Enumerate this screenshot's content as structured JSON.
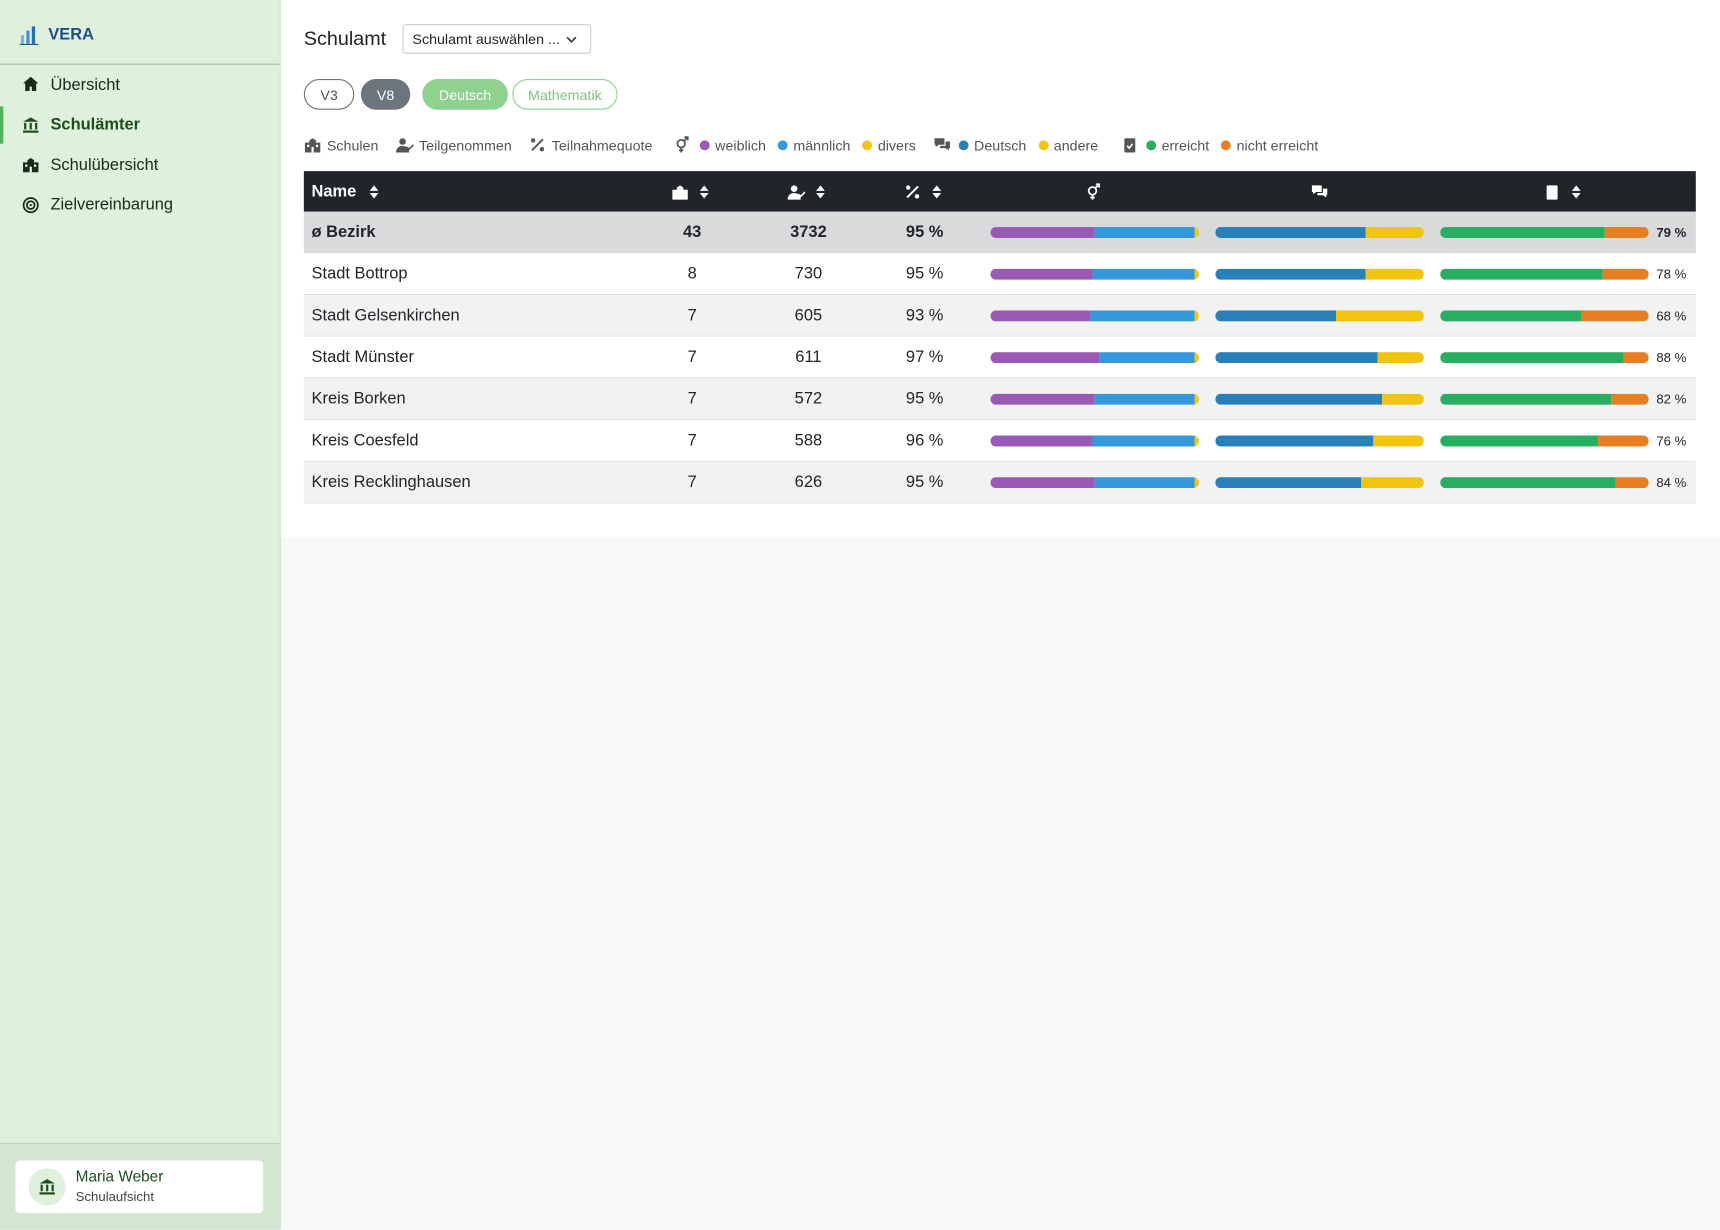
{
  "sidebar": {
    "brand": "VERA",
    "nav": [
      "Übersicht",
      "Schulämter",
      "Schulübersicht",
      "Zielvereinbarung"
    ],
    "active": 1,
    "user": {
      "name": "Maria Weber",
      "role": "Schulaufsicht"
    }
  },
  "header": {
    "title": "Schulamt",
    "select": "Schulamt auswählen ..."
  },
  "filters": {
    "grades": [
      "V3",
      "V8"
    ],
    "active_grade": 1,
    "subjects": [
      "Deutsch",
      "Mathematik"
    ],
    "active_subject": 0
  },
  "legend": {
    "columns": [
      "Schulen",
      "Teilgenommen",
      "Teilnahmequote"
    ],
    "gender": [
      {
        "name": "weiblich",
        "color": "#9b59b6"
      },
      {
        "name": "männlich",
        "color": "#3498db"
      },
      {
        "name": "divers",
        "color": "#f1c40f"
      }
    ],
    "language": [
      {
        "name": "Deutsch",
        "color": "#2980b9"
      },
      {
        "name": "andere",
        "color": "#f1c40f"
      }
    ],
    "achievement": [
      {
        "name": "erreicht",
        "color": "#27ae60"
      },
      {
        "name": "nicht erreicht",
        "color": "#e67e22"
      }
    ]
  },
  "table": {
    "name_header": "Name",
    "rows": [
      {
        "name": "ø Bezirk",
        "schools": 43,
        "participants": 3732,
        "rate": "95 %",
        "gender": [
          50,
          48,
          2
        ],
        "language": [
          72,
          28
        ],
        "achievement": [
          79,
          21
        ],
        "achievement_label": "79 %"
      },
      {
        "name": "Stadt Bottrop",
        "schools": 8,
        "participants": 730,
        "rate": "95 %",
        "gender": [
          49,
          49,
          2
        ],
        "language": [
          72,
          28
        ],
        "achievement": [
          78,
          22
        ],
        "achievement_label": "78 %"
      },
      {
        "name": "Stadt Gelsenkirchen",
        "schools": 7,
        "participants": 605,
        "rate": "93 %",
        "gender": [
          48,
          50,
          2
        ],
        "language": [
          58,
          42
        ],
        "achievement": [
          68,
          32
        ],
        "achievement_label": "68 %"
      },
      {
        "name": "Stadt Münster",
        "schools": 7,
        "participants": 611,
        "rate": "97 %",
        "gender": [
          52,
          46,
          2
        ],
        "language": [
          78,
          22
        ],
        "achievement": [
          88,
          12
        ],
        "achievement_label": "88 %"
      },
      {
        "name": "Kreis Borken",
        "schools": 7,
        "participants": 572,
        "rate": "95 %",
        "gender": [
          50,
          48,
          2
        ],
        "language": [
          80,
          20
        ],
        "achievement": [
          82,
          18
        ],
        "achievement_label": "82 %"
      },
      {
        "name": "Kreis Coesfeld",
        "schools": 7,
        "participants": 588,
        "rate": "96 %",
        "gender": [
          49,
          49,
          2
        ],
        "language": [
          76,
          24
        ],
        "achievement": [
          76,
          24
        ],
        "achievement_label": "76 %"
      },
      {
        "name": "Kreis Recklinghausen",
        "schools": 7,
        "participants": 626,
        "rate": "95 %",
        "gender": [
          50,
          48,
          2
        ],
        "language": [
          70,
          30
        ],
        "achievement": [
          84,
          16
        ],
        "achievement_label": "84 %"
      }
    ]
  }
}
